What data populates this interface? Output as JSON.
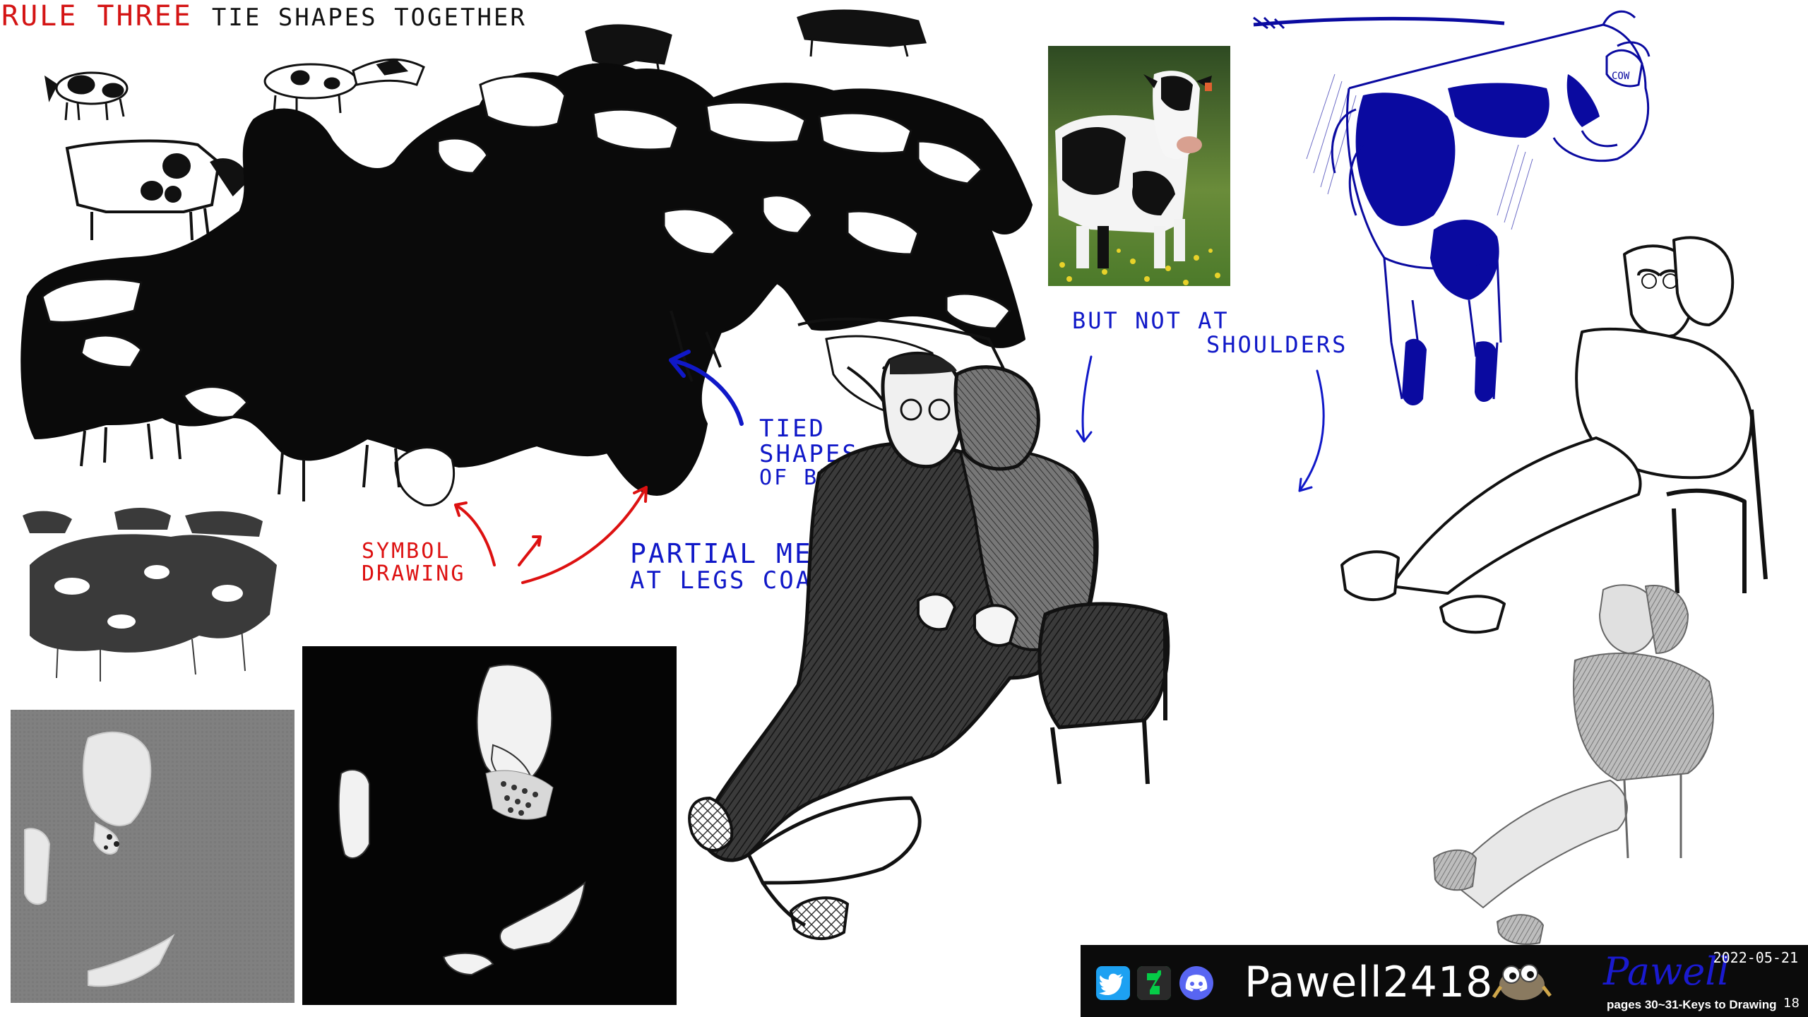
{
  "title": {
    "part1": "RULE THREE",
    "part2": "TIE SHAPES TOGETHER"
  },
  "annotations": {
    "tied_line1": "TIED",
    "tied_line2": "SHAPES",
    "tied_line3": "OF BLACK",
    "symbol_line1": "SYMBOL",
    "symbol_line2": "DRAWING",
    "partial_line1": "PARTIAL MERGE",
    "partial_line2": "AT LEGS COAT",
    "notshoulders_line1": "BUT NOT AT",
    "notshoulders_line2": "SHOULDERS",
    "cow_tag": "COW"
  },
  "banner": {
    "name": "Pawell2418",
    "date": "2022-05-21",
    "pages": "pages 30~31-Keys to Drawing",
    "page_number": "18",
    "signature": "Pawell"
  },
  "colors": {
    "red": "#dd1111",
    "blue": "#1018c8",
    "cow_blue": "#0a0aa0",
    "banner_bg": "#0b0b0b"
  },
  "icons": [
    "twitter-icon",
    "deviantart-icon",
    "discord-icon",
    "gimp-mascot-icon"
  ]
}
